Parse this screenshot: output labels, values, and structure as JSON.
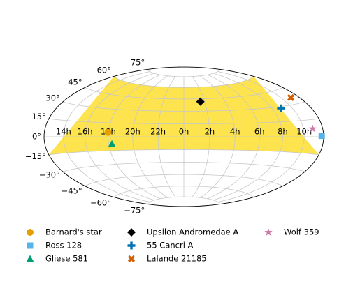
{
  "chart_data": {
    "type": "scatter",
    "projection": "hammer",
    "xlim": [
      -180,
      180
    ],
    "ylim": [
      -90,
      90
    ],
    "xticks": [
      {
        "value": -150,
        "label": "14h"
      },
      {
        "value": -120,
        "label": "16h"
      },
      {
        "value": -90,
        "label": "18h"
      },
      {
        "value": -60,
        "label": "20h"
      },
      {
        "value": -30,
        "label": "22h"
      },
      {
        "value": 0,
        "label": "0h"
      },
      {
        "value": 30,
        "label": "2h"
      },
      {
        "value": 60,
        "label": "4h"
      },
      {
        "value": 90,
        "label": "6h"
      },
      {
        "value": 120,
        "label": "8h"
      },
      {
        "value": 150,
        "label": "10h"
      }
    ],
    "yticks": [
      {
        "value": -75,
        "label": "−75°"
      },
      {
        "value": -60,
        "label": "−60°"
      },
      {
        "value": -45,
        "label": "−45°"
      },
      {
        "value": -30,
        "label": "−30°"
      },
      {
        "value": -15,
        "label": "−15°"
      },
      {
        "value": 0,
        "label": "0°"
      },
      {
        "value": 15,
        "label": "15°"
      },
      {
        "value": 30,
        "label": "30°"
      },
      {
        "value": 45,
        "label": "45°"
      },
      {
        "value": 60,
        "label": "60°"
      },
      {
        "value": 75,
        "label": "75°"
      }
    ],
    "grid": true,
    "band": {
      "ylim": [
        -15,
        60
      ],
      "color": "#fde34e"
    },
    "legend": "bottom",
    "series": [
      {
        "name": "Barnard's star",
        "color": "#e69f00",
        "marker": "circle",
        "x": [
          -90.5
        ],
        "values": [
          4.7
        ]
      },
      {
        "name": "Ross 128",
        "color": "#56b4e9",
        "marker": "square",
        "x": [
          176.9
        ],
        "values": [
          0.8
        ]
      },
      {
        "name": "Gliese 581",
        "color": "#009e73",
        "marker": "triangle",
        "x": [
          -86
        ],
        "values": [
          -7.7
        ]
      },
      {
        "name": "Upsilon Andromedae A",
        "color": "#000000",
        "marker": "diamond",
        "x": [
          24
        ],
        "values": [
          41.4
        ]
      },
      {
        "name": "55 Cancri A",
        "color": "#0072b2",
        "marker": "plus",
        "x": [
          133
        ],
        "values": [
          28.3
        ]
      },
      {
        "name": "Lalande 21185",
        "color": "#d55e00",
        "marker": "x",
        "x": [
          165.8
        ],
        "values": [
          36
        ]
      },
      {
        "name": "Wolf 359",
        "color": "#cc79a7",
        "marker": "star",
        "x": [
          164
        ],
        "values": [
          7
        ]
      }
    ]
  }
}
